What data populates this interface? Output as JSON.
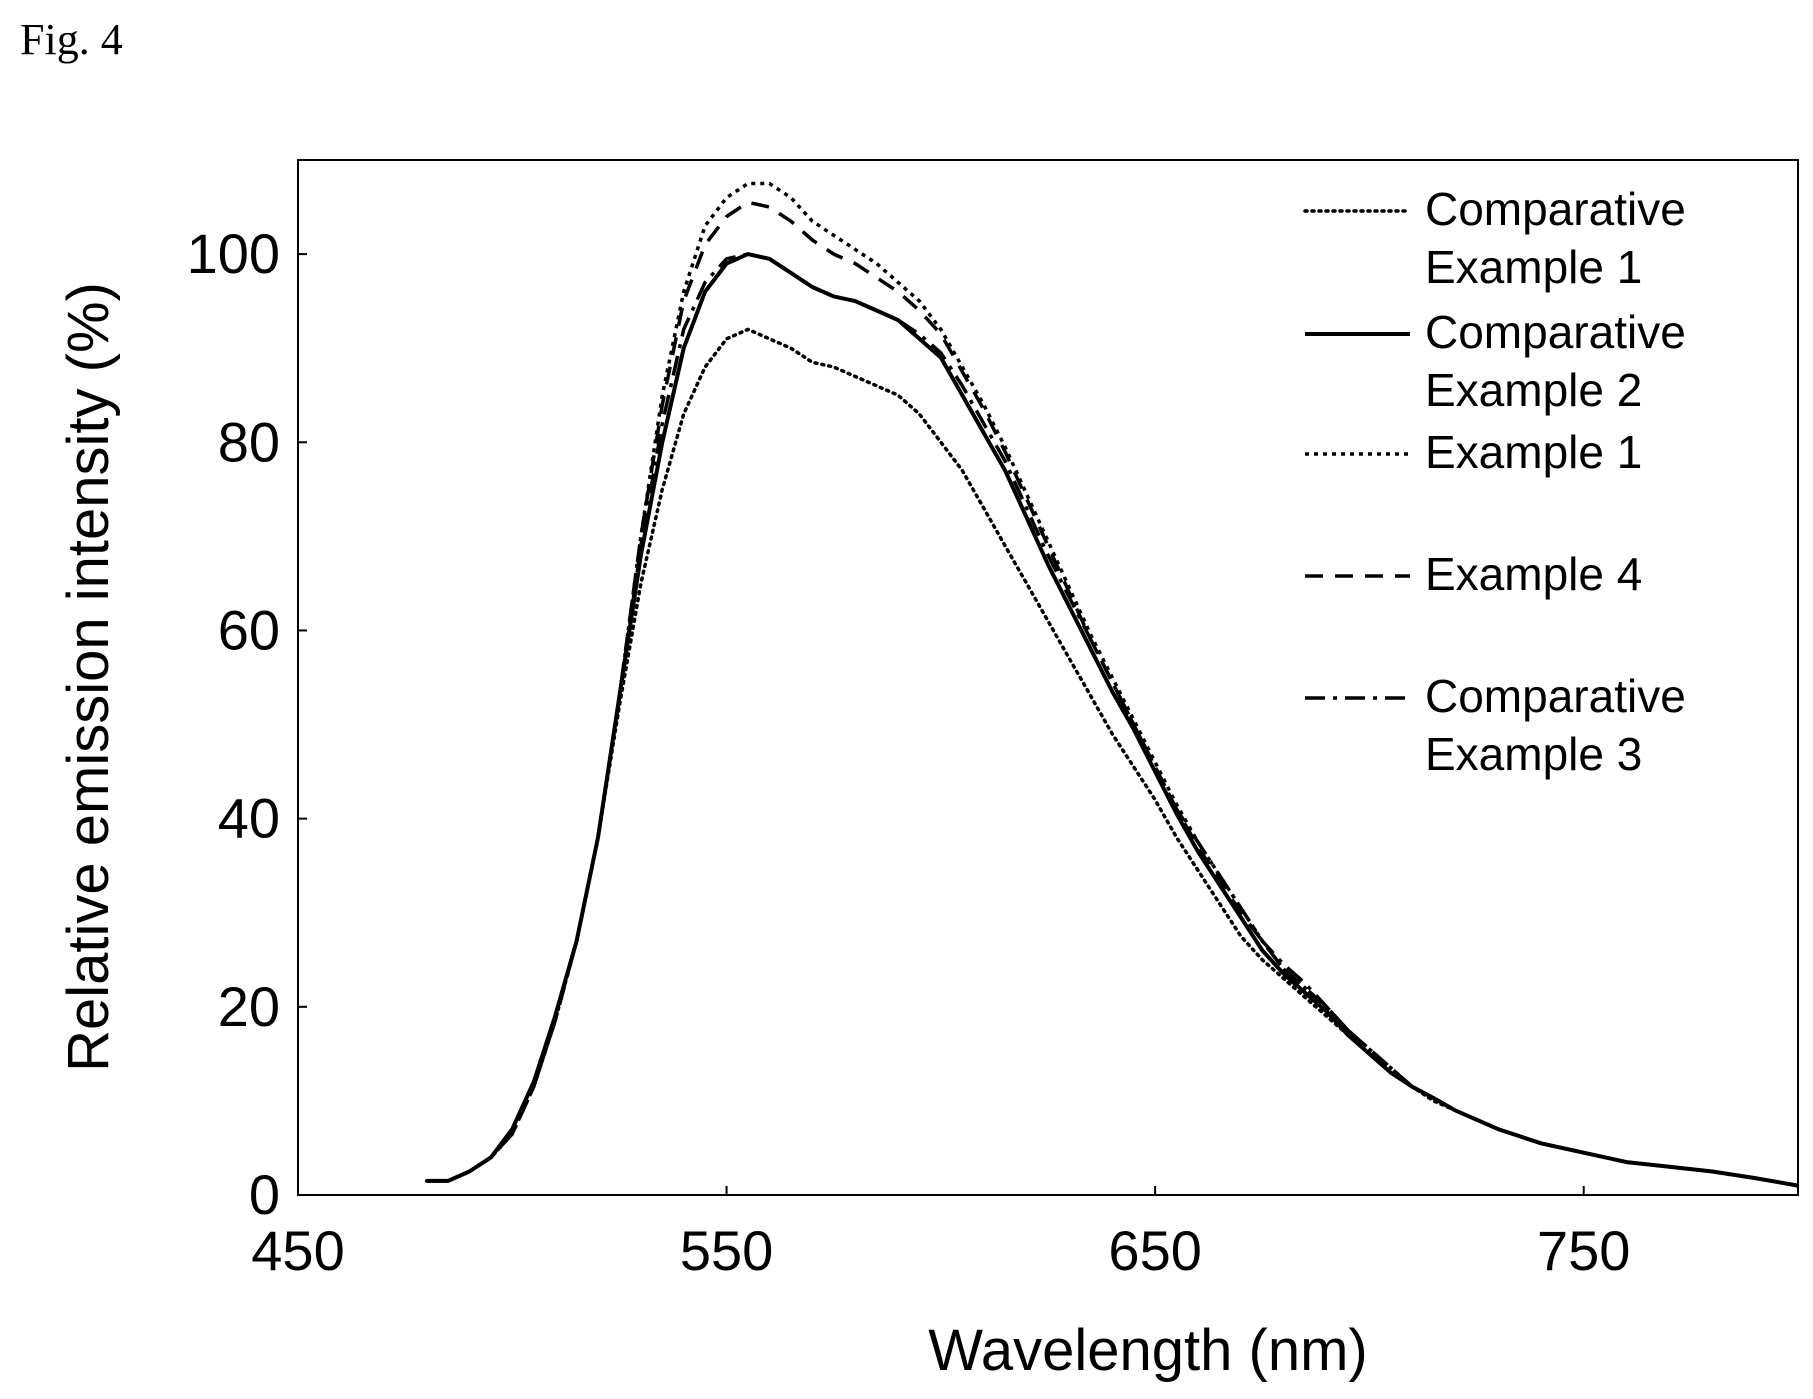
{
  "figure_label": "Fig.  4",
  "chart_data": {
    "type": "line",
    "xlabel": "Wavelength (nm)",
    "ylabel": "Relative emission intensity (%)",
    "xlim": [
      450,
      800
    ],
    "ylim": [
      0,
      110
    ],
    "xticks": [
      450,
      550,
      650,
      750
    ],
    "yticks": [
      0,
      20,
      40,
      60,
      80,
      100
    ],
    "x_tick_labels": [
      "450",
      "550",
      "650",
      "750"
    ],
    "y_tick_labels": [
      "0",
      "20",
      "40",
      "60",
      "80",
      "100"
    ],
    "grid": false,
    "legend_position": "top-right",
    "x": [
      480,
      485,
      490,
      495,
      500,
      505,
      510,
      515,
      520,
      525,
      530,
      535,
      540,
      545,
      550,
      555,
      560,
      565,
      570,
      575,
      580,
      585,
      590,
      595,
      600,
      605,
      610,
      615,
      620,
      625,
      630,
      635,
      640,
      645,
      650,
      655,
      660,
      665,
      670,
      675,
      680,
      685,
      690,
      695,
      700,
      705,
      710,
      715,
      720,
      730,
      740,
      750,
      760,
      770,
      780,
      790,
      800
    ],
    "series": [
      {
        "name": "Comparative Example 1",
        "dash": "dotted",
        "values": [
          1.5,
          1.5,
          2.5,
          4,
          7,
          12,
          19,
          27,
          38,
          52,
          65,
          75,
          83,
          88,
          91,
          92,
          91,
          90,
          88.5,
          88,
          87,
          86,
          85,
          83,
          80,
          77,
          73,
          69,
          65,
          61,
          57,
          53,
          49,
          45.5,
          42,
          38,
          34.5,
          31,
          27.5,
          25,
          23,
          21,
          19,
          17,
          15,
          13,
          11.5,
          10,
          9,
          7,
          5.5,
          4.5,
          3.5,
          3,
          2.5,
          1.8,
          1
        ]
      },
      {
        "name": "Comparative Example 2",
        "dash": "solid",
        "values": [
          1.5,
          1.5,
          2.5,
          4,
          7,
          12,
          19,
          27,
          38,
          53,
          68,
          80,
          90,
          96,
          99,
          100,
          99.5,
          98,
          96.5,
          95.5,
          95,
          94,
          93,
          91,
          89,
          85,
          81,
          77,
          72,
          67,
          62.5,
          58,
          53.5,
          49.5,
          45,
          40.5,
          36.5,
          33,
          29.5,
          26,
          23.5,
          21.5,
          19.5,
          17,
          15,
          13,
          11.5,
          10.3,
          9,
          7,
          5.5,
          4.5,
          3.5,
          3,
          2.5,
          1.8,
          1
        ]
      },
      {
        "name": "Example 1",
        "dash": "4,5",
        "values": [
          1.5,
          1.5,
          2.5,
          4,
          6.5,
          11.5,
          18.5,
          27,
          38,
          53,
          70,
          85,
          96,
          103,
          106,
          107.5,
          107.5,
          106,
          103.5,
          102,
          100.5,
          99,
          97,
          95,
          92,
          88,
          84,
          79.5,
          74.5,
          69.5,
          64.5,
          59.5,
          55,
          50.5,
          46,
          41.5,
          37.5,
          34,
          30.5,
          27,
          24,
          22,
          20,
          17.5,
          15.5,
          13.5,
          11.5,
          10.3,
          9,
          7,
          5.5,
          4.5,
          3.5,
          3,
          2.5,
          1.8,
          1
        ]
      },
      {
        "name": "Example 4",
        "dash": "18,12",
        "values": [
          1.5,
          1.5,
          2.5,
          4,
          6.5,
          11.5,
          18.5,
          27,
          38,
          53,
          70,
          84,
          95,
          101,
          104,
          105.5,
          105,
          103.5,
          101.5,
          100,
          99,
          97.5,
          96,
          94,
          91.5,
          87.5,
          83.5,
          79,
          74,
          69,
          64,
          59,
          54.5,
          50,
          45.5,
          41,
          37,
          33.5,
          30,
          27,
          24,
          22,
          20,
          17.5,
          15.5,
          13.5,
          11.5,
          10.3,
          9,
          7,
          5.5,
          4.5,
          3.5,
          3,
          2.5,
          1.8,
          1
        ]
      },
      {
        "name": "Comparative Example 3",
        "dash": "20,8,4,8",
        "values": [
          1.5,
          1.5,
          2.5,
          4,
          6.5,
          11.5,
          18.5,
          27,
          38,
          53,
          69,
          82,
          92,
          97,
          99.5,
          100,
          99.5,
          98,
          96.5,
          95.5,
          95,
          94,
          93,
          91.5,
          89.5,
          86,
          82,
          78,
          73,
          68,
          63.5,
          59,
          54.5,
          50,
          45.5,
          41,
          37.5,
          34,
          30.5,
          27,
          24.5,
          22.5,
          20,
          17.5,
          15.5,
          13.5,
          11.5,
          10.3,
          9,
          7,
          5.5,
          4.5,
          3.5,
          3,
          2.5,
          1.8,
          1
        ]
      }
    ],
    "legend": [
      {
        "lines": [
          "Comparative",
          "Example 1"
        ]
      },
      {
        "lines": [
          "Comparative",
          "Example 2"
        ]
      },
      {
        "lines": [
          "Example 1"
        ]
      },
      {
        "lines": [
          "Example 4"
        ]
      },
      {
        "lines": [
          "Comparative",
          "Example 3"
        ]
      }
    ]
  }
}
